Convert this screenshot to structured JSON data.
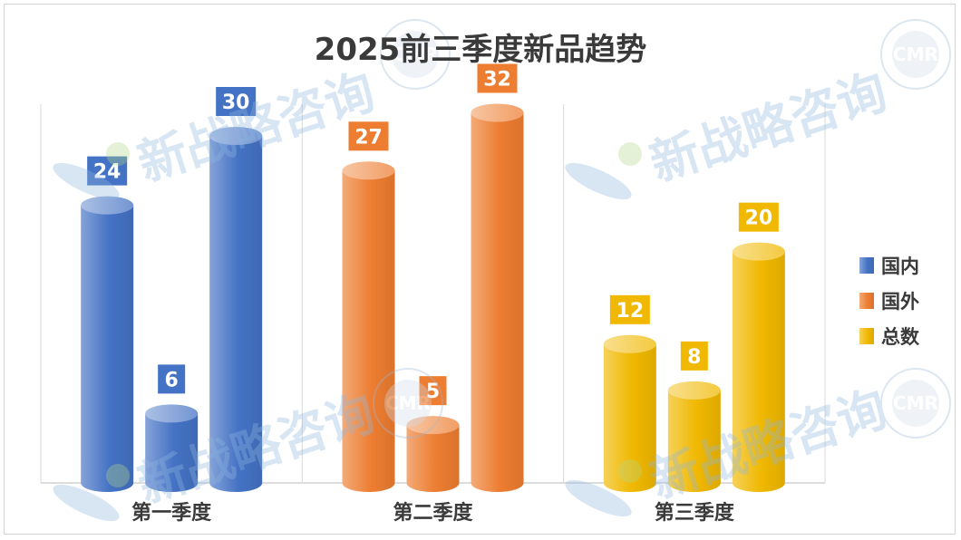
{
  "chart_data": {
    "type": "bar",
    "title": "2025前三季度新品趋势",
    "categories": [
      "第一季度",
      "第二季度",
      "第三季度"
    ],
    "series": [
      {
        "name": "国内",
        "values": [
          24,
          6,
          30
        ],
        "color": "#4472c4"
      },
      {
        "name": "国外",
        "values": [
          27,
          5,
          32
        ],
        "color": "#ed7d31"
      },
      {
        "name": "总数",
        "values": [
          12,
          8,
          20
        ],
        "color": "#f0b800"
      }
    ],
    "ylim": [
      0,
      36
    ],
    "legend_position": "right",
    "grid": false,
    "style": "3d-cylinder"
  },
  "watermark": {
    "text": "新战略咨询",
    "logo_text": "CMR"
  }
}
